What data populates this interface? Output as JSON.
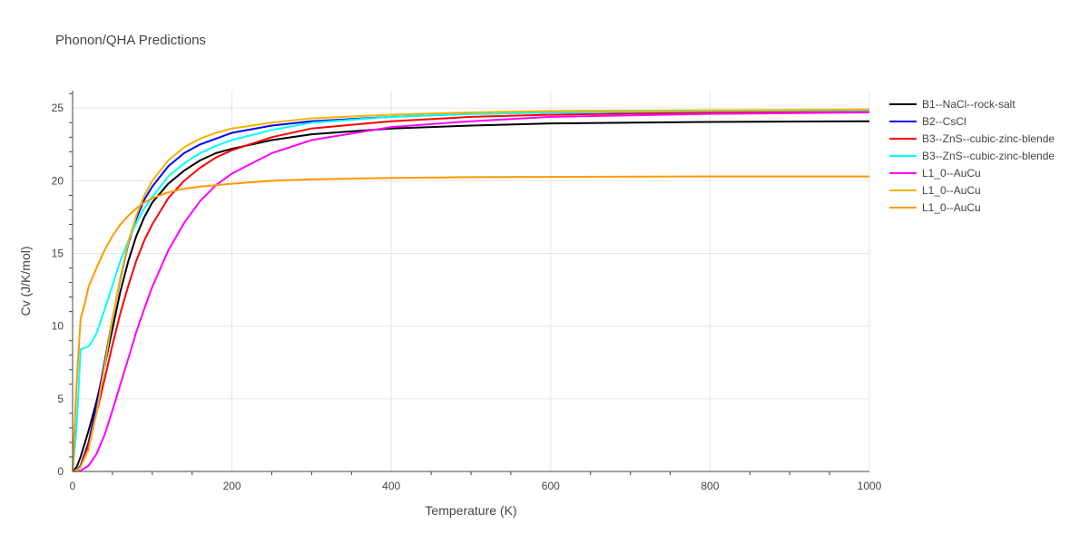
{
  "chart_data": {
    "type": "line",
    "title": "Phonon/QHA Predictions",
    "xlabel": "Temperature (K)",
    "ylabel": "Cv (J/K/mol)",
    "xlim": [
      0,
      1000
    ],
    "ylim": [
      0,
      26.2
    ],
    "xticks": [
      0,
      200,
      400,
      600,
      800,
      1000
    ],
    "yticks": [
      0,
      5,
      10,
      15,
      20,
      25
    ],
    "grid": true,
    "legend_position": "right",
    "series": [
      {
        "name": "B1--NaCl--rock-salt",
        "color": "#000000",
        "x": [
          0,
          5,
          10,
          20,
          30,
          40,
          50,
          60,
          70,
          80,
          90,
          100,
          120,
          140,
          160,
          180,
          200,
          250,
          300,
          400,
          500,
          600,
          800,
          1000
        ],
        "y": [
          0,
          0.3,
          1.0,
          2.8,
          4.8,
          7.2,
          9.8,
          12.4,
          14.5,
          16.2,
          17.5,
          18.5,
          19.8,
          20.7,
          21.4,
          21.9,
          22.2,
          22.8,
          23.2,
          23.6,
          23.8,
          23.95,
          24.05,
          24.1
        ]
      },
      {
        "name": "B2--CsCl",
        "color": "#0000ff",
        "x": [
          0,
          5,
          10,
          20,
          30,
          40,
          50,
          60,
          70,
          80,
          90,
          100,
          120,
          140,
          160,
          180,
          200,
          250,
          300,
          400,
          500,
          600,
          800,
          1000
        ],
        "y": [
          0,
          0.05,
          0.4,
          2.0,
          4.5,
          7.5,
          10.5,
          13.3,
          15.7,
          17.4,
          18.7,
          19.6,
          21.0,
          21.9,
          22.5,
          22.9,
          23.3,
          23.8,
          24.1,
          24.4,
          24.6,
          24.7,
          24.8,
          24.85
        ]
      },
      {
        "name": "B3--ZnS--cubic-zinc-blende",
        "color": "#ff0000",
        "x": [
          0,
          5,
          10,
          20,
          30,
          40,
          50,
          60,
          70,
          80,
          90,
          100,
          120,
          140,
          160,
          180,
          200,
          250,
          300,
          400,
          500,
          600,
          800,
          1000
        ],
        "y": [
          0,
          0.05,
          0.3,
          1.8,
          4.0,
          6.3,
          8.7,
          10.9,
          12.8,
          14.5,
          15.9,
          17.0,
          18.8,
          20.0,
          20.9,
          21.6,
          22.1,
          23.0,
          23.6,
          24.1,
          24.4,
          24.55,
          24.7,
          24.8
        ]
      },
      {
        "name": "B3--ZnS--cubic-zinc-blende",
        "color": "#00ffff",
        "x": [
          0,
          5,
          10,
          20,
          25,
          30,
          35,
          40,
          50,
          60,
          70,
          80,
          90,
          100,
          120,
          140,
          160,
          180,
          200,
          250,
          300,
          400,
          500,
          600,
          800,
          1000
        ],
        "y": [
          0,
          3.0,
          8.4,
          8.6,
          9.0,
          9.5,
          10.3,
          11.1,
          12.8,
          14.5,
          15.9,
          17.1,
          18.1,
          18.9,
          20.3,
          21.2,
          21.9,
          22.4,
          22.8,
          23.5,
          24.0,
          24.4,
          24.6,
          24.7,
          24.8,
          24.85
        ]
      },
      {
        "name": "L1_0--AuCu",
        "color": "#ff00ff",
        "x": [
          0,
          10,
          20,
          30,
          40,
          50,
          60,
          70,
          80,
          90,
          100,
          120,
          140,
          160,
          180,
          200,
          250,
          300,
          400,
          500,
          600,
          800,
          1000
        ],
        "y": [
          0,
          0.05,
          0.4,
          1.2,
          2.5,
          4.2,
          6.0,
          7.8,
          9.6,
          11.2,
          12.7,
          15.2,
          17.1,
          18.6,
          19.7,
          20.5,
          21.9,
          22.8,
          23.7,
          24.1,
          24.4,
          24.6,
          24.7
        ]
      },
      {
        "name": "L1_0--AuCu",
        "color": "#f4b400",
        "x": [
          0,
          5,
          10,
          20,
          30,
          40,
          50,
          60,
          70,
          80,
          90,
          100,
          120,
          140,
          160,
          180,
          200,
          250,
          300,
          400,
          500,
          600,
          800,
          1000
        ],
        "y": [
          0,
          0.05,
          0.3,
          1.5,
          4.0,
          7.2,
          10.5,
          13.4,
          15.8,
          17.6,
          19.0,
          20.0,
          21.4,
          22.3,
          22.9,
          23.3,
          23.6,
          24.0,
          24.3,
          24.55,
          24.7,
          24.8,
          24.85,
          24.9
        ]
      },
      {
        "name": "L1_0--AuCu",
        "color": "#ff9900",
        "x": [
          0,
          5,
          10,
          15,
          20,
          30,
          40,
          50,
          60,
          70,
          80,
          90,
          100,
          120,
          140,
          160,
          180,
          200,
          250,
          300,
          400,
          500,
          600,
          800,
          1000
        ],
        "y": [
          0,
          6.0,
          10.5,
          11.5,
          12.7,
          14.0,
          15.2,
          16.2,
          17.0,
          17.6,
          18.1,
          18.5,
          18.8,
          19.2,
          19.45,
          19.6,
          19.7,
          19.8,
          20.0,
          20.1,
          20.2,
          20.25,
          20.27,
          20.3,
          20.3
        ]
      }
    ]
  }
}
